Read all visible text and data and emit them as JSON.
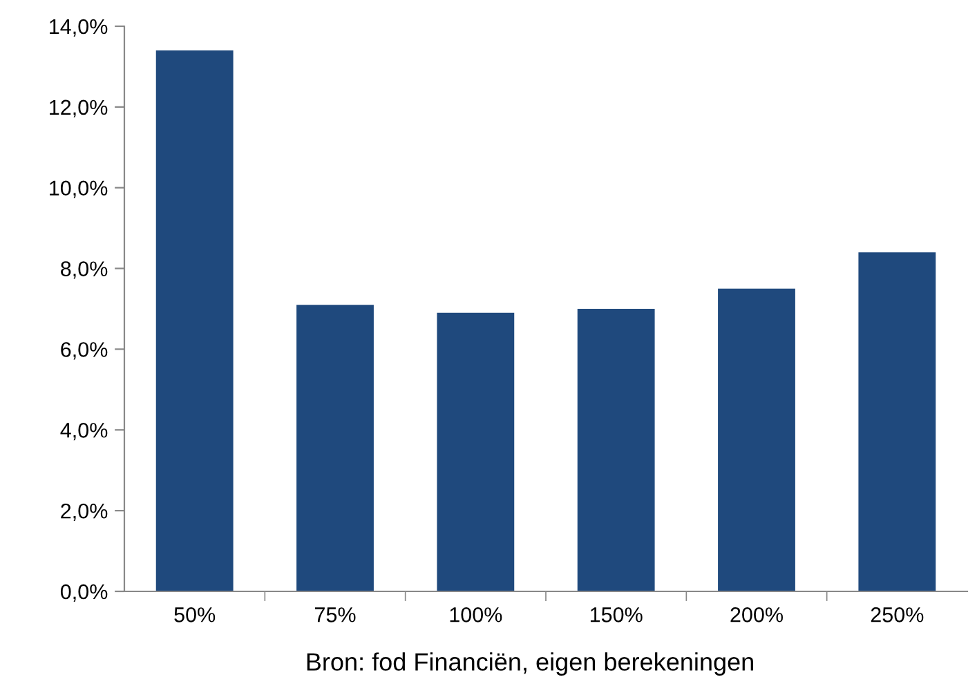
{
  "chart_data": {
    "type": "bar",
    "categories": [
      "50%",
      "75%",
      "100%",
      "150%",
      "200%",
      "250%"
    ],
    "values": [
      13.4,
      7.1,
      6.9,
      7.0,
      7.5,
      8.4
    ],
    "color": "#1f497d",
    "ylim": [
      0,
      14
    ],
    "yticks": [
      {
        "value": 0,
        "label": "0,0%"
      },
      {
        "value": 2,
        "label": "2,0%"
      },
      {
        "value": 4,
        "label": "4,0%"
      },
      {
        "value": 6,
        "label": "6,0%"
      },
      {
        "value": 8,
        "label": "8,0%"
      },
      {
        "value": 10,
        "label": "10,0%"
      },
      {
        "value": 12,
        "label": "12,0%"
      },
      {
        "value": 14,
        "label": "14,0%"
      }
    ],
    "grid": false,
    "annotations": [
      "Bron: fod Financiën, eigen berekeningen"
    ]
  }
}
